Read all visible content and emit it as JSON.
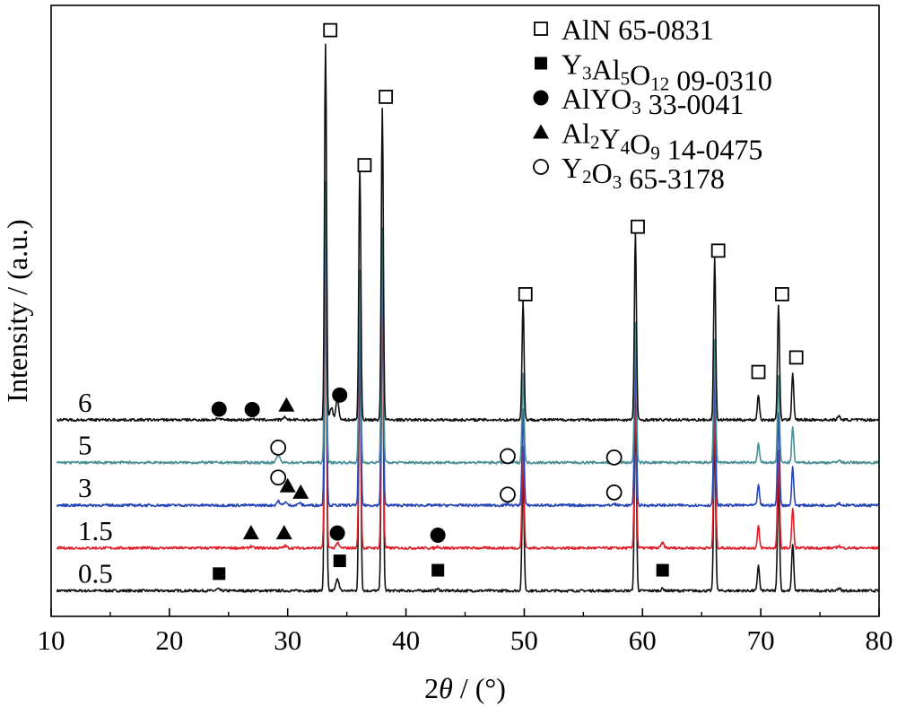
{
  "chart_data": {
    "type": "line",
    "title": "",
    "xlabel_prefix": "2",
    "xlabel_theta": "θ",
    "xlabel_suffix": " / (°)",
    "ylabel": "Intensity / (a.u.)",
    "xlim": [
      10,
      80
    ],
    "x_ticks": [
      10,
      20,
      30,
      40,
      50,
      60,
      70,
      80
    ],
    "y_ticks_shown": false,
    "grid": false,
    "legend_position": "top-right",
    "legend": [
      {
        "marker": "open-square",
        "parts": [
          {
            "t": "AlN 65-0831"
          }
        ]
      },
      {
        "marker": "filled-square",
        "parts": [
          {
            "t": "Y"
          },
          {
            "t": "3",
            "sub": true
          },
          {
            "t": "Al"
          },
          {
            "t": "5",
            "sub": true
          },
          {
            "t": "O"
          },
          {
            "t": "12",
            "sub": true
          },
          {
            "t": " 09-0310"
          }
        ]
      },
      {
        "marker": "filled-circle",
        "parts": [
          {
            "t": "AlYO"
          },
          {
            "t": "3",
            "sub": true
          },
          {
            "t": " 33-0041"
          }
        ]
      },
      {
        "marker": "filled-triangle",
        "parts": [
          {
            "t": "Al"
          },
          {
            "t": "2",
            "sub": true
          },
          {
            "t": "Y"
          },
          {
            "t": "4",
            "sub": true
          },
          {
            "t": "O"
          },
          {
            "t": "9",
            "sub": true
          },
          {
            "t": " 14-0475"
          }
        ]
      },
      {
        "marker": "open-circle",
        "parts": [
          {
            "t": "Y"
          },
          {
            "t": "2",
            "sub": true
          },
          {
            "t": "O"
          },
          {
            "t": "3",
            "sub": true
          },
          {
            "t": " 65-3178"
          }
        ]
      }
    ],
    "series": [
      {
        "name": "0.5",
        "color": "#111111",
        "baseline": 0.06,
        "aln_scale": 1.0,
        "minor": [
          [
            24.1,
            0.004
          ],
          [
            34.2,
            0.03
          ],
          [
            42.7,
            0.004
          ],
          [
            61.7,
            0.005
          ],
          [
            76.6,
            0.006
          ]
        ],
        "markers": [
          {
            "type": "filled-square",
            "x": 24.2,
            "y": 0.1
          },
          {
            "type": "filled-square",
            "x": 34.4,
            "y": 0.13
          },
          {
            "type": "filled-square",
            "x": 42.7,
            "y": 0.108
          },
          {
            "type": "filled-square",
            "x": 61.7,
            "y": 0.108
          }
        ]
      },
      {
        "name": "1.5",
        "color": "#e0202a",
        "baseline": 0.16,
        "aln_scale": 0.85,
        "minor": [
          [
            26.9,
            0.004
          ],
          [
            29.8,
            0.005
          ],
          [
            34.2,
            0.012
          ],
          [
            42.7,
            0.004
          ],
          [
            61.7,
            0.012
          ],
          [
            76.6,
            0.005
          ]
        ],
        "markers": [
          {
            "type": "filled-triangle",
            "x": 26.9,
            "y": 0.195
          },
          {
            "type": "filled-triangle",
            "x": 29.7,
            "y": 0.195
          },
          {
            "type": "filled-circle",
            "x": 34.2,
            "y": 0.195
          },
          {
            "type": "filled-circle",
            "x": 42.7,
            "y": 0.19
          }
        ]
      },
      {
        "name": "3",
        "color": "#2746b8",
        "baseline": 0.26,
        "aln_scale": 0.8,
        "minor": [
          [
            29.2,
            0.01
          ],
          [
            29.8,
            0.008
          ],
          [
            31.0,
            0.006
          ],
          [
            48.6,
            0.003
          ],
          [
            57.6,
            0.003
          ],
          [
            76.6,
            0.005
          ]
        ],
        "markers": [
          {
            "type": "open-circle",
            "x": 29.2,
            "y": 0.325
          },
          {
            "type": "filled-triangle",
            "x": 30.0,
            "y": 0.305
          },
          {
            "type": "filled-triangle",
            "x": 31.1,
            "y": 0.29
          },
          {
            "type": "open-circle",
            "x": 48.6,
            "y": 0.285
          },
          {
            "type": "open-circle",
            "x": 57.6,
            "y": 0.29
          }
        ]
      },
      {
        "name": "5",
        "color": "#4a8f94",
        "baseline": 0.36,
        "aln_scale": 0.75,
        "minor": [
          [
            29.2,
            0.02
          ],
          [
            48.6,
            0.003
          ],
          [
            57.6,
            0.003
          ],
          [
            76.6,
            0.006
          ]
        ],
        "markers": [
          {
            "type": "open-circle",
            "x": 29.2,
            "y": 0.395
          },
          {
            "type": "open-circle",
            "x": 48.6,
            "y": 0.375
          },
          {
            "type": "open-circle",
            "x": 57.6,
            "y": 0.372
          }
        ]
      },
      {
        "name": "6",
        "color": "#111111",
        "baseline": 0.46,
        "aln_scale": 1.0,
        "minor": [
          [
            24.1,
            0.004
          ],
          [
            27.0,
            0.004
          ],
          [
            29.8,
            0.006
          ],
          [
            33.7,
            0.03
          ],
          [
            34.2,
            0.05
          ],
          [
            76.6,
            0.008
          ]
        ],
        "markers": [
          {
            "type": "filled-circle",
            "x": 24.2,
            "y": 0.485
          },
          {
            "type": "filled-circle",
            "x": 27.0,
            "y": 0.484
          },
          {
            "type": "filled-triangle",
            "x": 29.9,
            "y": 0.494
          },
          {
            "type": "filled-circle",
            "x": 34.4,
            "y": 0.518
          },
          {
            "type": "open-square",
            "x": 33.6,
            "y": 1.372
          },
          {
            "type": "open-square",
            "x": 36.5,
            "y": 1.056
          },
          {
            "type": "open-square",
            "x": 38.3,
            "y": 1.216
          },
          {
            "type": "open-square",
            "x": 50.1,
            "y": 0.754
          },
          {
            "type": "open-square",
            "x": 59.6,
            "y": 0.912
          },
          {
            "type": "open-square",
            "x": 66.4,
            "y": 0.856
          },
          {
            "type": "open-square",
            "x": 69.8,
            "y": 0.572
          },
          {
            "type": "open-square",
            "x": 71.8,
            "y": 0.754
          },
          {
            "type": "open-square",
            "x": 73.0,
            "y": 0.606
          }
        ]
      }
    ],
    "aln_peaks": [
      [
        33.2,
        0.88
      ],
      [
        36.1,
        0.6
      ],
      [
        38.0,
        0.73
      ],
      [
        49.9,
        0.28
      ],
      [
        59.4,
        0.44
      ],
      [
        66.1,
        0.38
      ],
      [
        69.8,
        0.06
      ],
      [
        71.5,
        0.27
      ],
      [
        72.7,
        0.11
      ]
    ],
    "y_plot_range": [
      0,
      1.43
    ]
  }
}
